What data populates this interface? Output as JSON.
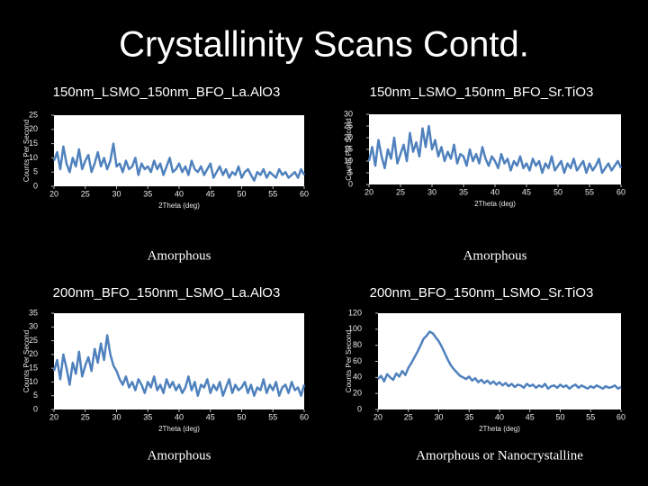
{
  "title": "Crystallinity Scans Contd.",
  "chart_data": [
    {
      "type": "line",
      "title": "150nm_LSMO_150nm_BFO_La.AlO3",
      "x_label": "2Theta (deg)",
      "y_label": "Counts Per Second",
      "caption": "Amorphous",
      "color": "#4f81bd",
      "xlim": [
        20,
        60
      ],
      "xticks": [
        20,
        25,
        30,
        35,
        40,
        45,
        50,
        55,
        60
      ],
      "ylim": [
        0,
        25
      ],
      "yticks": [
        0,
        5,
        10,
        15,
        20,
        25
      ],
      "x": [
        20,
        20.5,
        21,
        21.5,
        22,
        22.5,
        23,
        23.5,
        24,
        24.5,
        25,
        25.5,
        26,
        26.5,
        27,
        27.5,
        28,
        28.5,
        29,
        29.5,
        30,
        30.5,
        31,
        31.5,
        32,
        32.5,
        33,
        33.5,
        34,
        34.5,
        35,
        35.5,
        36,
        36.5,
        37,
        37.5,
        38,
        38.5,
        39,
        39.5,
        40,
        40.5,
        41,
        41.5,
        42,
        42.5,
        43,
        43.5,
        44,
        44.5,
        45,
        45.5,
        46,
        46.5,
        47,
        47.5,
        48,
        48.5,
        49,
        49.5,
        50,
        50.5,
        51,
        51.5,
        52,
        52.5,
        53,
        53.5,
        54,
        54.5,
        55,
        55.5,
        56,
        56.5,
        57,
        57.5,
        58,
        58.5,
        59,
        59.5,
        60
      ],
      "values": [
        9,
        12,
        6,
        14,
        8,
        5,
        10,
        7,
        13,
        6,
        9,
        11,
        5,
        8,
        12,
        7,
        10,
        6,
        9,
        15,
        7,
        8,
        5,
        9,
        6,
        7,
        10,
        4,
        8,
        6,
        7,
        5,
        9,
        6,
        8,
        4,
        7,
        10,
        5,
        6,
        8,
        5,
        7,
        4,
        9,
        6,
        5,
        7,
        4,
        6,
        8,
        3,
        5,
        7,
        4,
        6,
        3,
        5,
        4,
        7,
        3,
        5,
        6,
        4,
        2,
        5,
        4,
        6,
        3,
        5,
        4,
        3,
        6,
        4,
        5,
        3,
        4,
        5,
        3,
        6,
        4
      ]
    },
    {
      "type": "line",
      "title": "150nm_LSMO_150nm_BFO_Sr.TiO3",
      "x_label": "2Theta (deg)",
      "y_label": "Counts Per Second",
      "caption": "Amorphous",
      "color": "#4f81bd",
      "xlim": [
        20,
        60
      ],
      "xticks": [
        20,
        25,
        30,
        35,
        40,
        45,
        50,
        55,
        60
      ],
      "ylim": [
        0,
        30
      ],
      "yticks": [
        0,
        5,
        10,
        15,
        20,
        25,
        30
      ],
      "x": [
        20,
        20.5,
        21,
        21.5,
        22,
        22.5,
        23,
        23.5,
        24,
        24.5,
        25,
        25.5,
        26,
        26.5,
        27,
        27.5,
        28,
        28.5,
        29,
        29.5,
        30,
        30.5,
        31,
        31.5,
        32,
        32.5,
        33,
        33.5,
        34,
        34.5,
        35,
        35.5,
        36,
        36.5,
        37,
        37.5,
        38,
        38.5,
        39,
        39.5,
        40,
        40.5,
        41,
        41.5,
        42,
        42.5,
        43,
        43.5,
        44,
        44.5,
        45,
        45.5,
        46,
        46.5,
        47,
        47.5,
        48,
        48.5,
        49,
        49.5,
        50,
        50.5,
        51,
        51.5,
        52,
        52.5,
        53,
        53.5,
        54,
        54.5,
        55,
        55.5,
        56,
        56.5,
        57,
        57.5,
        58,
        58.5,
        59,
        59.5,
        60
      ],
      "values": [
        10,
        16,
        8,
        19,
        12,
        7,
        15,
        11,
        20,
        9,
        13,
        17,
        10,
        22,
        14,
        18,
        12,
        24,
        16,
        25,
        15,
        19,
        12,
        16,
        10,
        14,
        11,
        17,
        9,
        13,
        12,
        8,
        15,
        10,
        13,
        9,
        16,
        11,
        8,
        12,
        10,
        7,
        13,
        9,
        11,
        6,
        10,
        8,
        12,
        7,
        9,
        6,
        11,
        8,
        10,
        5,
        9,
        7,
        12,
        6,
        8,
        10,
        5,
        9,
        7,
        11,
        6,
        8,
        10,
        5,
        9,
        6,
        8,
        11,
        5,
        7,
        9,
        6,
        8,
        10,
        7
      ]
    },
    {
      "type": "line",
      "title": "200nm_BFO_150nm_LSMO_La.AlO3",
      "x_label": "2Theta (deg)",
      "y_label": "Counts Per Second",
      "caption": "Amorphous",
      "color": "#4f81bd",
      "xlim": [
        20,
        60
      ],
      "xticks": [
        20,
        25,
        30,
        35,
        40,
        45,
        50,
        55,
        60
      ],
      "ylim": [
        0,
        35
      ],
      "yticks": [
        0,
        5,
        10,
        15,
        20,
        25,
        30,
        35
      ],
      "x": [
        20,
        20.5,
        21,
        21.5,
        22,
        22.5,
        23,
        23.5,
        24,
        24.5,
        25,
        25.5,
        26,
        26.5,
        27,
        27.5,
        28,
        28.5,
        29,
        29.5,
        30,
        30.5,
        31,
        31.5,
        32,
        32.5,
        33,
        33.5,
        34,
        34.5,
        35,
        35.5,
        36,
        36.5,
        37,
        37.5,
        38,
        38.5,
        39,
        39.5,
        40,
        40.5,
        41,
        41.5,
        42,
        42.5,
        43,
        43.5,
        44,
        44.5,
        45,
        45.5,
        46,
        46.5,
        47,
        47.5,
        48,
        48.5,
        49,
        49.5,
        50,
        50.5,
        51,
        51.5,
        52,
        52.5,
        53,
        53.5,
        54,
        54.5,
        55,
        55.5,
        56,
        56.5,
        57,
        57.5,
        58,
        58.5,
        59,
        59.5,
        60
      ],
      "values": [
        14,
        18,
        11,
        20,
        15,
        9,
        17,
        13,
        21,
        12,
        16,
        19,
        14,
        22,
        17,
        24,
        18,
        27,
        20,
        16,
        14,
        11,
        9,
        12,
        8,
        10,
        7,
        11,
        9,
        6,
        10,
        8,
        12,
        7,
        9,
        6,
        11,
        8,
        10,
        7,
        9,
        6,
        8,
        12,
        7,
        10,
        5,
        9,
        8,
        11,
        6,
        9,
        7,
        10,
        5,
        8,
        11,
        6,
        9,
        7,
        8,
        10,
        6,
        9,
        5,
        8,
        7,
        11,
        6,
        9,
        7,
        10,
        5,
        8,
        9,
        6,
        10,
        7,
        8,
        5,
        9
      ]
    },
    {
      "type": "line",
      "title": "200nm_BFO_150nm_LSMO_Sr.TiO3",
      "x_label": "2Theta (deg)",
      "y_label": "Counts Per Second",
      "caption": "Amorphous or Nanocrystalline",
      "color": "#4f81bd",
      "xlim": [
        20,
        60
      ],
      "xticks": [
        20,
        25,
        30,
        35,
        40,
        45,
        50,
        55,
        60
      ],
      "ylim": [
        0,
        120
      ],
      "yticks": [
        0,
        20,
        40,
        60,
        80,
        100,
        120
      ],
      "x": [
        20,
        20.5,
        21,
        21.5,
        22,
        22.5,
        23,
        23.5,
        24,
        24.5,
        25,
        25.5,
        26,
        26.5,
        27,
        27.5,
        28,
        28.5,
        29,
        29.5,
        30,
        30.5,
        31,
        31.5,
        32,
        32.5,
        33,
        33.5,
        34,
        34.5,
        35,
        35.5,
        36,
        36.5,
        37,
        37.5,
        38,
        38.5,
        39,
        39.5,
        40,
        40.5,
        41,
        41.5,
        42,
        42.5,
        43,
        43.5,
        44,
        44.5,
        45,
        45.5,
        46,
        46.5,
        47,
        47.5,
        48,
        48.5,
        49,
        49.5,
        50,
        50.5,
        51,
        51.5,
        52,
        52.5,
        53,
        53.5,
        54,
        54.5,
        55,
        55.5,
        56,
        56.5,
        57,
        57.5,
        58,
        58.5,
        59,
        59.5,
        60
      ],
      "values": [
        38,
        42,
        35,
        44,
        40,
        37,
        45,
        41,
        48,
        43,
        52,
        58,
        65,
        72,
        80,
        88,
        92,
        97,
        95,
        90,
        85,
        78,
        70,
        62,
        55,
        50,
        46,
        42,
        40,
        38,
        41,
        36,
        39,
        34,
        37,
        33,
        36,
        32,
        35,
        31,
        34,
        30,
        33,
        29,
        32,
        28,
        31,
        30,
        27,
        32,
        29,
        31,
        27,
        30,
        28,
        32,
        26,
        29,
        30,
        27,
        31,
        28,
        30,
        26,
        29,
        31,
        27,
        30,
        28,
        26,
        29,
        27,
        30,
        28,
        26,
        29,
        27,
        28,
        30,
        26,
        28
      ]
    }
  ]
}
